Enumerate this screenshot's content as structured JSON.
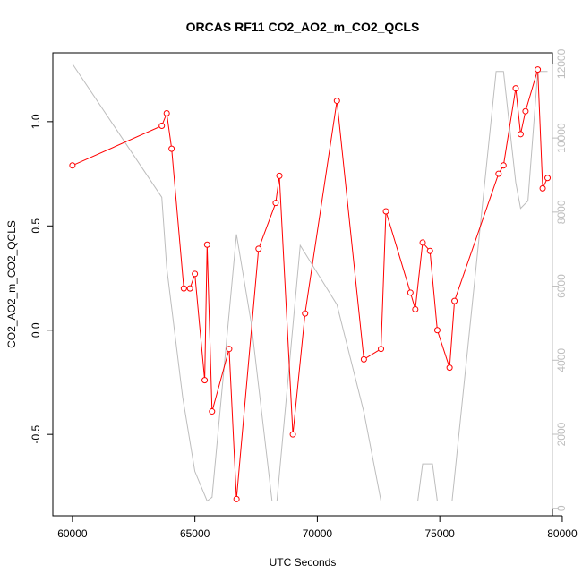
{
  "chart_data": {
    "type": "line",
    "title": "ORCAS RF11 CO2_AO2_m_CO2_QCLS",
    "xlabel": "UTC Seconds",
    "ylabel": "CO2_AO2_m_CO2_QCLS",
    "ylabel_right": "",
    "xlim": [
      59200,
      79600
    ],
    "ylim": [
      -0.89,
      1.33
    ],
    "y2lim": [
      -200,
      12300
    ],
    "x_ticks": [
      60000,
      65000,
      70000,
      75000,
      80000
    ],
    "x_tick_labels": [
      "60000",
      "65000",
      "70000",
      "75000",
      "80000"
    ],
    "y_ticks": [
      -0.5,
      0.0,
      0.5,
      1.0
    ],
    "y_tick_labels": [
      "-0.5",
      "0.0",
      "0.5",
      "1.0"
    ],
    "y2_ticks": [
      0,
      2000,
      4000,
      6000,
      8000,
      10000,
      12000
    ],
    "y2_tick_labels": [
      "0",
      "2000",
      "4000",
      "6000",
      "8000",
      "10000",
      "12000"
    ],
    "grid": false,
    "legend": "none",
    "colors": {
      "primary": "#ff0000",
      "secondary": "#bdbdbd",
      "axes": "#000000"
    },
    "series": [
      {
        "axis": "left",
        "style": "line+points",
        "color": "#ff0000",
        "x": [
          60000,
          63650,
          63850,
          64050,
          64550,
          64800,
          65000,
          65400,
          65500,
          65700,
          66400,
          66700,
          67600,
          68300,
          68450,
          69000,
          69500,
          70800,
          71900,
          72600,
          72800,
          73800,
          74000,
          74300,
          74600,
          74900,
          75400,
          75600,
          77400,
          77600,
          78100,
          78300,
          78500,
          79000,
          79200,
          79400
        ],
        "y": [
          0.79,
          0.98,
          1.04,
          0.87,
          0.2,
          0.2,
          0.27,
          -0.24,
          0.41,
          -0.39,
          -0.09,
          -0.81,
          0.39,
          0.61,
          0.74,
          -0.5,
          0.08,
          1.1,
          -0.14,
          -0.09,
          0.57,
          0.18,
          0.1,
          0.42,
          0.38,
          -0.0,
          -0.18,
          0.14,
          0.75,
          0.79,
          1.16,
          0.94,
          1.05,
          1.25,
          0.68,
          0.73
        ]
      },
      {
        "axis": "right",
        "style": "line",
        "color": "#bdbdbd",
        "x": [
          60000,
          63650,
          63850,
          64500,
          65000,
          65500,
          65700,
          66700,
          67300,
          68150,
          68350,
          69300,
          70800,
          71900,
          72600,
          74100,
          74300,
          74700,
          74900,
          75500,
          77300,
          77600,
          78100,
          78300,
          78600,
          79000,
          79200,
          79400
        ],
        "y": [
          12000,
          8400,
          6500,
          3000,
          1000,
          200,
          300,
          7400,
          5000,
          200,
          200,
          7100,
          5500,
          2600,
          200,
          200,
          1200,
          1200,
          200,
          200,
          11800,
          11800,
          8800,
          8100,
          8300,
          11800,
          11800,
          11800
        ]
      }
    ]
  }
}
